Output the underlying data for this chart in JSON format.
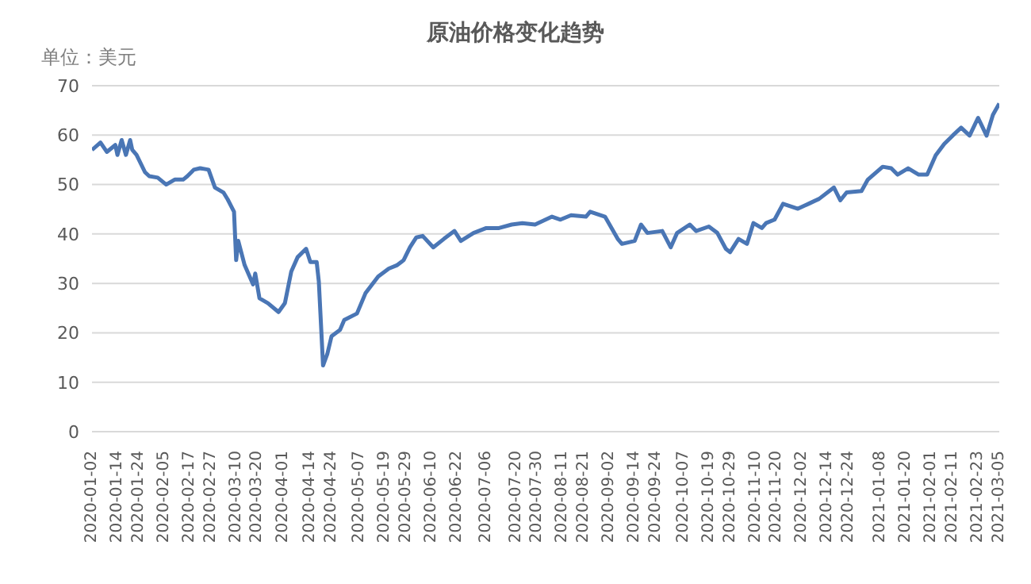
{
  "chart_data": {
    "type": "line",
    "title": "原油价格变化趋势",
    "ylabel": "单位：美元",
    "x": [
      "2020-01-02",
      "2020-01-06",
      "2020-01-09",
      "2020-01-13",
      "2020-01-14",
      "2020-01-16",
      "2020-01-18",
      "2020-01-20",
      "2020-01-21",
      "2020-01-23",
      "2020-01-27",
      "2020-01-29",
      "2020-02-02",
      "2020-02-06",
      "2020-02-10",
      "2020-02-14",
      "2020-02-16",
      "2020-02-19",
      "2020-02-22",
      "2020-02-26",
      "2020-02-29",
      "2020-03-04",
      "2020-03-06",
      "2020-03-09",
      "2020-03-10",
      "2020-03-11",
      "2020-03-14",
      "2020-03-18",
      "2020-03-19",
      "2020-03-21",
      "2020-03-25",
      "2020-03-30",
      "2020-04-02",
      "2020-04-05",
      "2020-04-08",
      "2020-04-12",
      "2020-04-14",
      "2020-04-17",
      "2020-04-18",
      "2020-04-20",
      "2020-04-22",
      "2020-04-24",
      "2020-04-28",
      "2020-04-30",
      "2020-05-06",
      "2020-05-10",
      "2020-05-16",
      "2020-05-21",
      "2020-05-25",
      "2020-05-28",
      "2020-05-31",
      "2020-06-03",
      "2020-06-06",
      "2020-06-11",
      "2020-06-16",
      "2020-06-21",
      "2020-06-24",
      "2020-06-30",
      "2020-07-06",
      "2020-07-12",
      "2020-07-18",
      "2020-07-23",
      "2020-07-29",
      "2020-08-06",
      "2020-08-10",
      "2020-08-15",
      "2020-08-22",
      "2020-08-24",
      "2020-08-31",
      "2020-09-06",
      "2020-09-08",
      "2020-09-14",
      "2020-09-17",
      "2020-09-20",
      "2020-09-27",
      "2020-10-01",
      "2020-10-04",
      "2020-10-10",
      "2020-10-13",
      "2020-10-19",
      "2020-10-23",
      "2020-10-27",
      "2020-10-29",
      "2020-11-02",
      "2020-11-06",
      "2020-11-09",
      "2020-11-13",
      "2020-11-15",
      "2020-11-19",
      "2020-11-23",
      "2020-11-30",
      "2020-12-05",
      "2020-12-10",
      "2020-12-17",
      "2020-12-20",
      "2020-12-23",
      "2020-12-30",
      "2021-01-02",
      "2021-01-09",
      "2021-01-13",
      "2021-01-16",
      "2021-01-21",
      "2021-01-26",
      "2021-01-30",
      "2021-02-03",
      "2021-02-07",
      "2021-02-11",
      "2021-02-15",
      "2021-02-19",
      "2021-02-23",
      "2021-02-27",
      "2021-03-02",
      "2021-03-05"
    ],
    "series": [
      {
        "color": "#4a76b5",
        "values": [
          57,
          58.5,
          56.6,
          58,
          56,
          59,
          56,
          59,
          57,
          56,
          52.5,
          51.7,
          51.4,
          50,
          51,
          51,
          51.7,
          53,
          53.3,
          53,
          49.4,
          48.4,
          47,
          44.5,
          34.7,
          38.6,
          33.7,
          29.8,
          32,
          27,
          26,
          24.2,
          26,
          32.4,
          35.3,
          37,
          34.3,
          34.3,
          30.4,
          13.4,
          15.7,
          19.3,
          20.6,
          22.6,
          23.9,
          28,
          31.4,
          33,
          33.7,
          34.7,
          37.3,
          39.3,
          39.6,
          37.3,
          39,
          40.6,
          38.6,
          40.2,
          41.2,
          41.2,
          41.9,
          42.2,
          41.9,
          43.5,
          42.9,
          43.8,
          43.5,
          44.5,
          43.5,
          39,
          38,
          38.6,
          41.9,
          40.2,
          40.6,
          37.3,
          40.2,
          41.9,
          40.6,
          41.5,
          40.2,
          37,
          36.3,
          39,
          38,
          42.2,
          41.2,
          42.2,
          42.9,
          46.1,
          45.1,
          46.1,
          47.1,
          49.4,
          46.8,
          48.4,
          48.7,
          51,
          53.6,
          53.3,
          52,
          53.3,
          52,
          52,
          55.9,
          58.2,
          59.9,
          61.5,
          59.9,
          63.5,
          59.9,
          64.1,
          66.4
        ]
      }
    ],
    "xlim": [
      "2020-01-02",
      "2021-03-05"
    ],
    "xticks": [
      "2020-01-02",
      "2020-01-14",
      "2020-01-24",
      "2020-02-05",
      "2020-02-17",
      "2020-02-27",
      "2020-03-10",
      "2020-03-20",
      "2020-04-01",
      "2020-04-14",
      "2020-04-24",
      "2020-05-07",
      "2020-05-19",
      "2020-05-29",
      "2020-06-10",
      "2020-06-22",
      "2020-07-06",
      "2020-07-20",
      "2020-07-30",
      "2020-08-11",
      "2020-08-21",
      "2020-09-02",
      "2020-09-14",
      "2020-09-24",
      "2020-10-07",
      "2020-10-19",
      "2020-10-29",
      "2020-11-10",
      "2020-11-20",
      "2020-12-02",
      "2020-12-14",
      "2020-12-24",
      "2021-01-08",
      "2021-01-20",
      "2021-02-01",
      "2021-02-11",
      "2021-02-23",
      "2021-03-05"
    ],
    "ylim": [
      0,
      70
    ],
    "yticks": [
      0,
      10,
      20,
      30,
      40,
      50,
      60,
      70
    ],
    "grid": "y",
    "marker": "none",
    "line_style": "solid"
  }
}
